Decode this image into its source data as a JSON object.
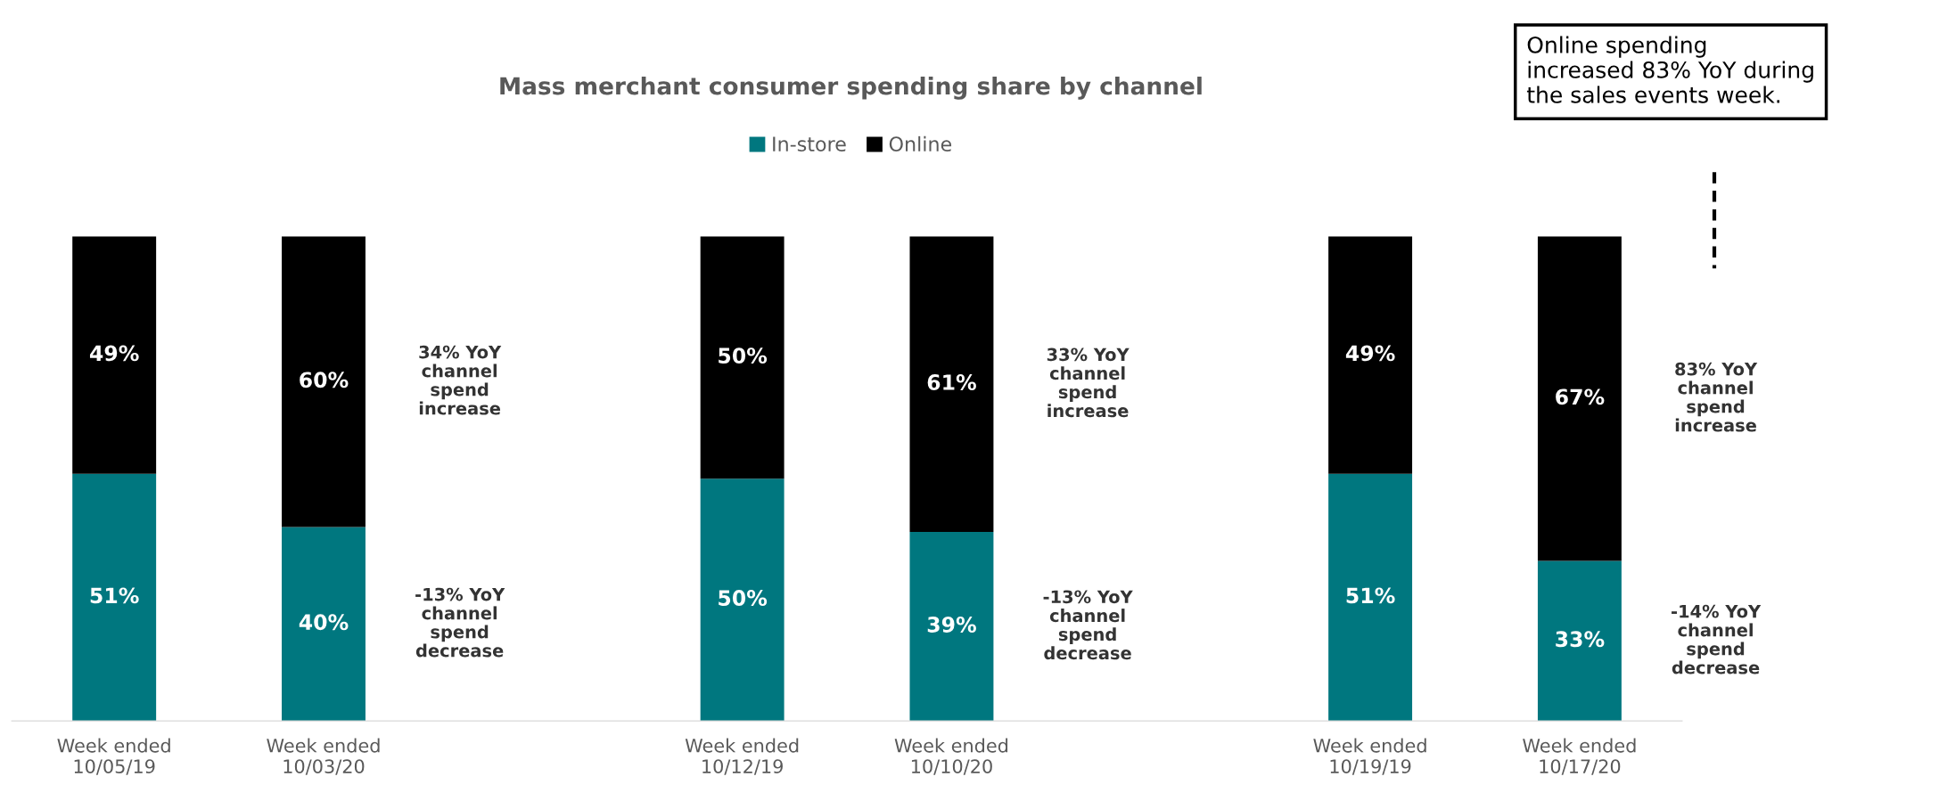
{
  "chart_data": {
    "type": "bar",
    "title": "Mass merchant consumer spending share by channel",
    "categories": [
      "Week ended\n10/05/19",
      "Week ended\n10/03/20",
      null,
      "Week ended\n10/12/19",
      "Week ended\n10/10/20",
      null,
      "Week ended\n10/19/19",
      "Week ended\n10/17/20"
    ],
    "series": [
      {
        "name": "In-store",
        "color": "#00777f",
        "values": [
          51,
          40,
          null,
          50,
          39,
          null,
          51,
          33
        ],
        "value_labels": [
          "51%",
          "40%",
          null,
          "50%",
          "39%",
          null,
          "51%",
          "33%"
        ]
      },
      {
        "name": "Online",
        "color": "#000000",
        "values": [
          49,
          60,
          null,
          50,
          61,
          null,
          49,
          67
        ],
        "value_labels": [
          "49%",
          "60%",
          null,
          "50%",
          "61%",
          null,
          "49%",
          "67%"
        ]
      }
    ],
    "stacked": true,
    "tick_labels": "x",
    "legend": "top",
    "grid": false,
    "annotations": [
      "34% YoY\nchannel\nspend\nincrease",
      "-13% YoY\nchannel\nspend\ndecrease",
      "33% YoY\nchannel\nspend\nincrease",
      "-13% YoY\nchannel\nspend\ndecrease",
      "83% YoY\nchannel\nspend\nincrease",
      "-14% YoY\nchannel\nspend\ndecrease",
      "Online spending\nincreased 83% YoY during\nthe sales events week."
    ]
  }
}
